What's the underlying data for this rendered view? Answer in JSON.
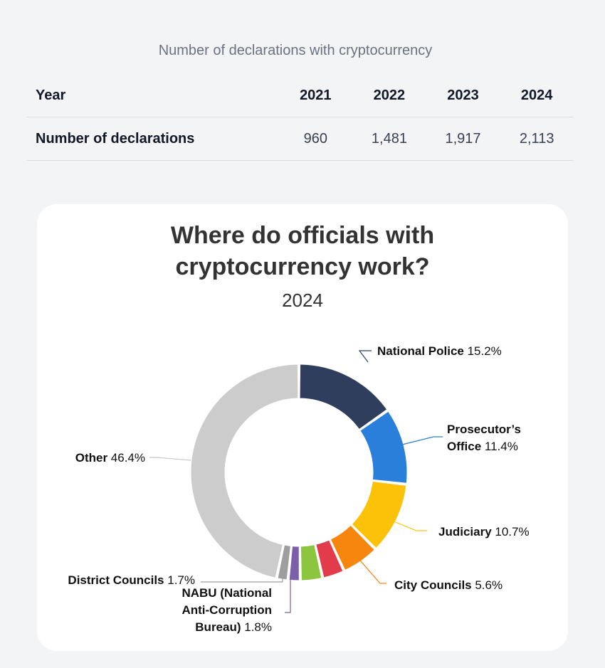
{
  "table": {
    "title": "Number of declarations with cryptocurrency",
    "header_label": "Year",
    "years": [
      "2021",
      "2022",
      "2023",
      "2024"
    ],
    "row_label": "Number of declarations",
    "values": [
      "960",
      "1,481",
      "1,917",
      "2,113"
    ]
  },
  "chart_data": {
    "type": "pie",
    "title_line1": "Where do officials with",
    "title_line2": "cryptocurrency work?",
    "subtitle": "2024",
    "donut": true,
    "slices": [
      {
        "label": "National Police",
        "value": 15.2,
        "pct": "15.2%",
        "color": "#2e3e5c"
      },
      {
        "label": "Prosecutor’s Office",
        "label_lines": [
          "Prosecutor’s",
          "Office"
        ],
        "value": 11.4,
        "pct": "11.4%",
        "color": "#2a7fdb"
      },
      {
        "label": "Judiciary",
        "value": 10.7,
        "pct": "10.7%",
        "color": "#fcc20a"
      },
      {
        "label": "City Councils",
        "value": 5.6,
        "pct": "5.6%",
        "color": "#f7860e"
      },
      {
        "label": "",
        "value": 3.3,
        "pct": "",
        "color": "#e23b4c"
      },
      {
        "label": "",
        "value": 3.3,
        "pct": "",
        "color": "#8cc63e"
      },
      {
        "label": "NABU (National Anti-Corruption Bureau)",
        "label_lines": [
          "NABU (National",
          "Anti-Corruption",
          "Bureau)"
        ],
        "value": 1.8,
        "pct": "1.8%",
        "color": "#7b5fa8"
      },
      {
        "label": "District Councils",
        "value": 1.7,
        "pct": "1.7%",
        "color": "#9e9e9e"
      },
      {
        "label": "Other",
        "value": 46.4,
        "pct": "46.4%",
        "color": "#cccccc"
      }
    ]
  }
}
